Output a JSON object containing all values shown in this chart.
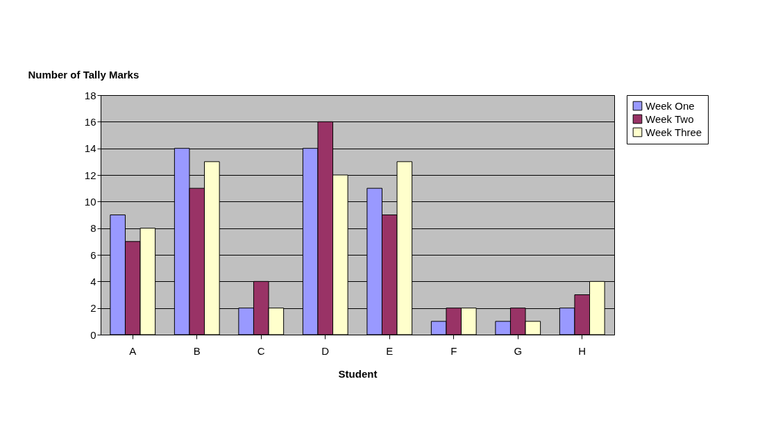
{
  "chart_data": {
    "type": "bar",
    "xlabel": "Student",
    "ylabel": "Number of Tally Marks",
    "categories": [
      "A",
      "B",
      "C",
      "D",
      "E",
      "F",
      "G",
      "H"
    ],
    "series": [
      {
        "name": "Week One",
        "color": "#9999ff",
        "values": [
          9,
          14,
          2,
          14,
          11,
          1,
          1,
          2
        ]
      },
      {
        "name": "Week Two",
        "color": "#993366",
        "values": [
          7,
          11,
          4,
          16,
          9,
          2,
          2,
          3
        ]
      },
      {
        "name": "Week Three",
        "color": "#ffffcc",
        "values": [
          8,
          13,
          2,
          12,
          13,
          2,
          1,
          4
        ]
      }
    ],
    "ylim": [
      0,
      18
    ],
    "yticks": [
      0,
      2,
      4,
      6,
      8,
      10,
      12,
      14,
      16,
      18
    ],
    "grid": "y",
    "legend": "right"
  }
}
